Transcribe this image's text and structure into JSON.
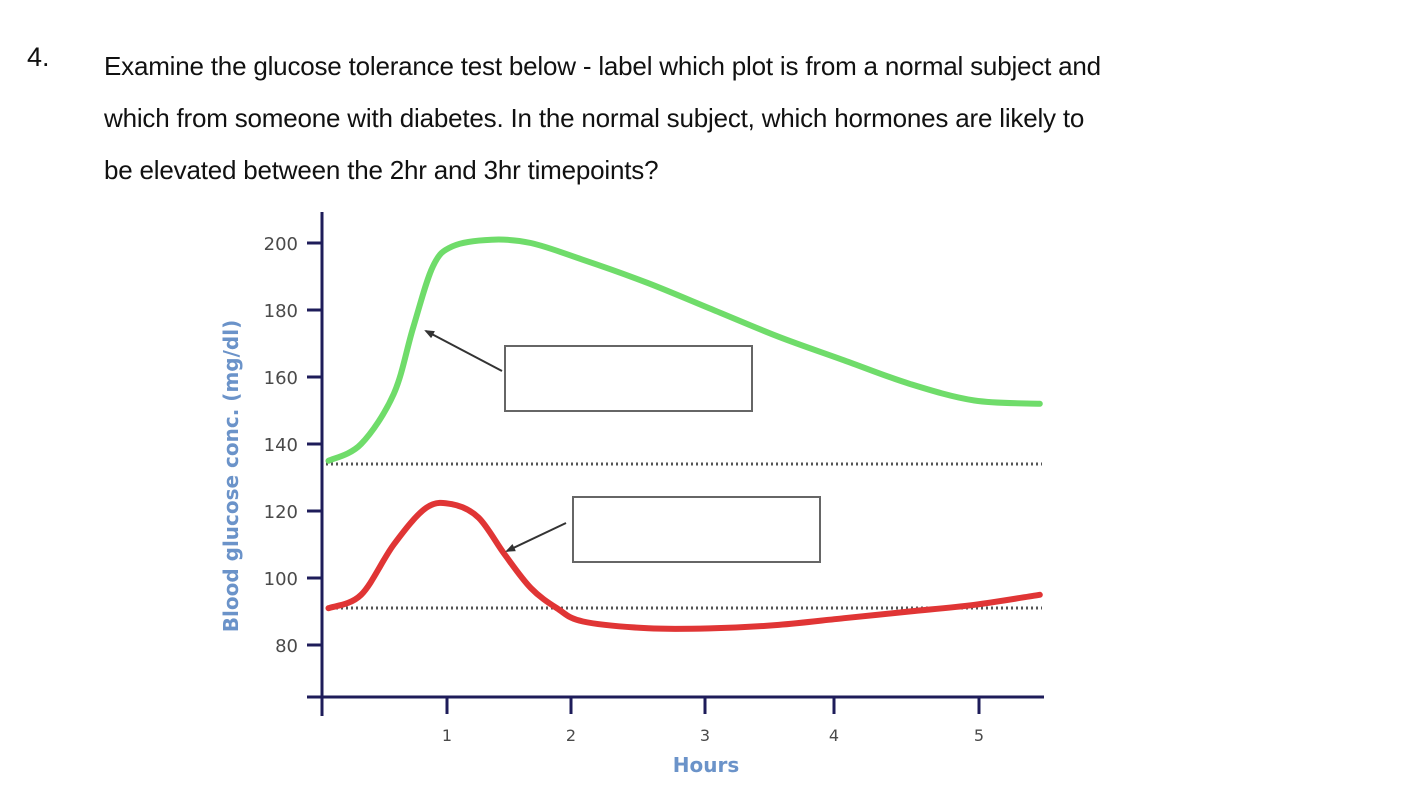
{
  "question": {
    "number": "4.",
    "lines": [
      "Examine the glucose tolerance test below - label which plot is from a normal subject and",
      "which from someone with diabetes. In the normal subject, which hormones are likely to",
      "be elevated between the 2hr and 3hr timepoints?"
    ]
  },
  "answer_boxes": [
    {
      "id": "green-curve-label-box",
      "value": ""
    },
    {
      "id": "red-curve-label-box",
      "value": ""
    }
  ],
  "chart_data": {
    "type": "line",
    "title": "",
    "xlabel": "Hours",
    "ylabel": "Blood glucose conc. (mg/dl)",
    "x_ticks": [
      "1",
      "2",
      "3",
      "4",
      "5"
    ],
    "y_ticks": [
      "80",
      "100",
      "120",
      "140",
      "160",
      "180",
      "200"
    ],
    "xlim": [
      0,
      5.5
    ],
    "ylim": [
      70,
      210
    ],
    "grid": false,
    "legend": null,
    "series": [
      {
        "name": "Upper curve (green)",
        "color": "#6fdc6a",
        "x": [
          0.05,
          0.3,
          0.55,
          0.7,
          0.85,
          1.0,
          1.3,
          1.6,
          2.0,
          2.5,
          3.0,
          3.5,
          4.0,
          4.5,
          5.0,
          5.5
        ],
        "values": [
          135,
          140,
          155,
          175,
          193,
          199,
          201,
          200,
          195,
          188,
          180,
          172,
          165,
          158,
          153,
          152
        ]
      },
      {
        "name": "Lower curve (red)",
        "color": "#e03535",
        "x": [
          0.05,
          0.3,
          0.55,
          0.8,
          1.0,
          1.2,
          1.4,
          1.6,
          1.8,
          2.0,
          2.5,
          3.0,
          3.5,
          4.0,
          4.5,
          5.0,
          5.5
        ],
        "values": [
          91,
          95,
          110,
          121,
          122,
          118,
          107,
          97,
          91,
          87,
          85,
          85,
          86,
          88,
          90,
          92,
          95
        ]
      }
    ],
    "reference_lines": [
      {
        "style": "dotted",
        "y": 134,
        "label": "baseline (upper)"
      },
      {
        "style": "dotted",
        "y": 91,
        "label": "baseline (lower)"
      }
    ],
    "annotations": [
      {
        "type": "empty-label-box",
        "arrow_to": "green curve at ~0.8 h, ~175 mg/dl"
      },
      {
        "type": "empty-label-box",
        "arrow_to": "red curve at ~1.4 h, ~107 mg/dl"
      }
    ]
  }
}
